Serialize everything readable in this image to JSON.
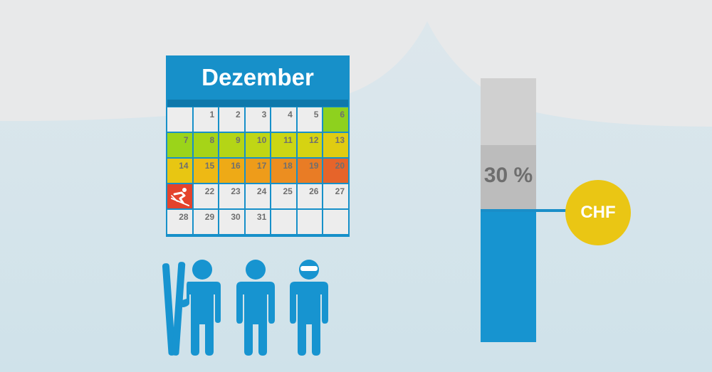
{
  "calendar": {
    "month": "Dezember",
    "cells": [
      {
        "label": "",
        "color": "#ededed"
      },
      {
        "label": "1",
        "color": "#ededed"
      },
      {
        "label": "2",
        "color": "#ededed"
      },
      {
        "label": "3",
        "color": "#ededed"
      },
      {
        "label": "4",
        "color": "#ededed"
      },
      {
        "label": "5",
        "color": "#ededed"
      },
      {
        "label": "6",
        "color": "#8ed11e"
      },
      {
        "label": "7",
        "color": "#9bd41a"
      },
      {
        "label": "8",
        "color": "#a6d418"
      },
      {
        "label": "9",
        "color": "#b4d516"
      },
      {
        "label": "10",
        "color": "#c0d615"
      },
      {
        "label": "11",
        "color": "#ccd614"
      },
      {
        "label": "12",
        "color": "#d6d312"
      },
      {
        "label": "13",
        "color": "#e0cc12"
      },
      {
        "label": "14",
        "color": "#e8c612"
      },
      {
        "label": "15",
        "color": "#eeb914"
      },
      {
        "label": "16",
        "color": "#eeaa16"
      },
      {
        "label": "17",
        "color": "#ee9c1a"
      },
      {
        "label": "18",
        "color": "#ec8e20"
      },
      {
        "label": "19",
        "color": "#e97c25"
      },
      {
        "label": "20",
        "color": "#e6642a"
      },
      {
        "label": "",
        "color": "#e4432c",
        "icon": "skier-icon"
      },
      {
        "label": "22",
        "color": "#ededed"
      },
      {
        "label": "23",
        "color": "#ededed"
      },
      {
        "label": "24",
        "color": "#ededed"
      },
      {
        "label": "25",
        "color": "#ededed"
      },
      {
        "label": "26",
        "color": "#ededed"
      },
      {
        "label": "27",
        "color": "#ededed"
      },
      {
        "label": "28",
        "color": "#ededed"
      },
      {
        "label": "29",
        "color": "#ededed"
      },
      {
        "label": "30",
        "color": "#ededed"
      },
      {
        "label": "31",
        "color": "#ededed"
      },
      {
        "label": "",
        "color": "#ededed"
      },
      {
        "label": "",
        "color": "#ededed"
      },
      {
        "label": "",
        "color": "#ededed"
      },
      {
        "label": "",
        "color": "#ededed"
      }
    ]
  },
  "gauge": {
    "percent_label": "30 %",
    "fill_fraction": 0.3,
    "currency": "CHF"
  },
  "people": [
    {
      "icon": "person-with-skis-icon"
    },
    {
      "icon": "person-icon"
    },
    {
      "icon": "person-with-sunglasses-icon"
    }
  ],
  "colors": {
    "sky": "#e8e9ea",
    "snow": "#d7e6ec",
    "accent_blue": "#1794d0",
    "coin_yellow": "#eac614"
  }
}
